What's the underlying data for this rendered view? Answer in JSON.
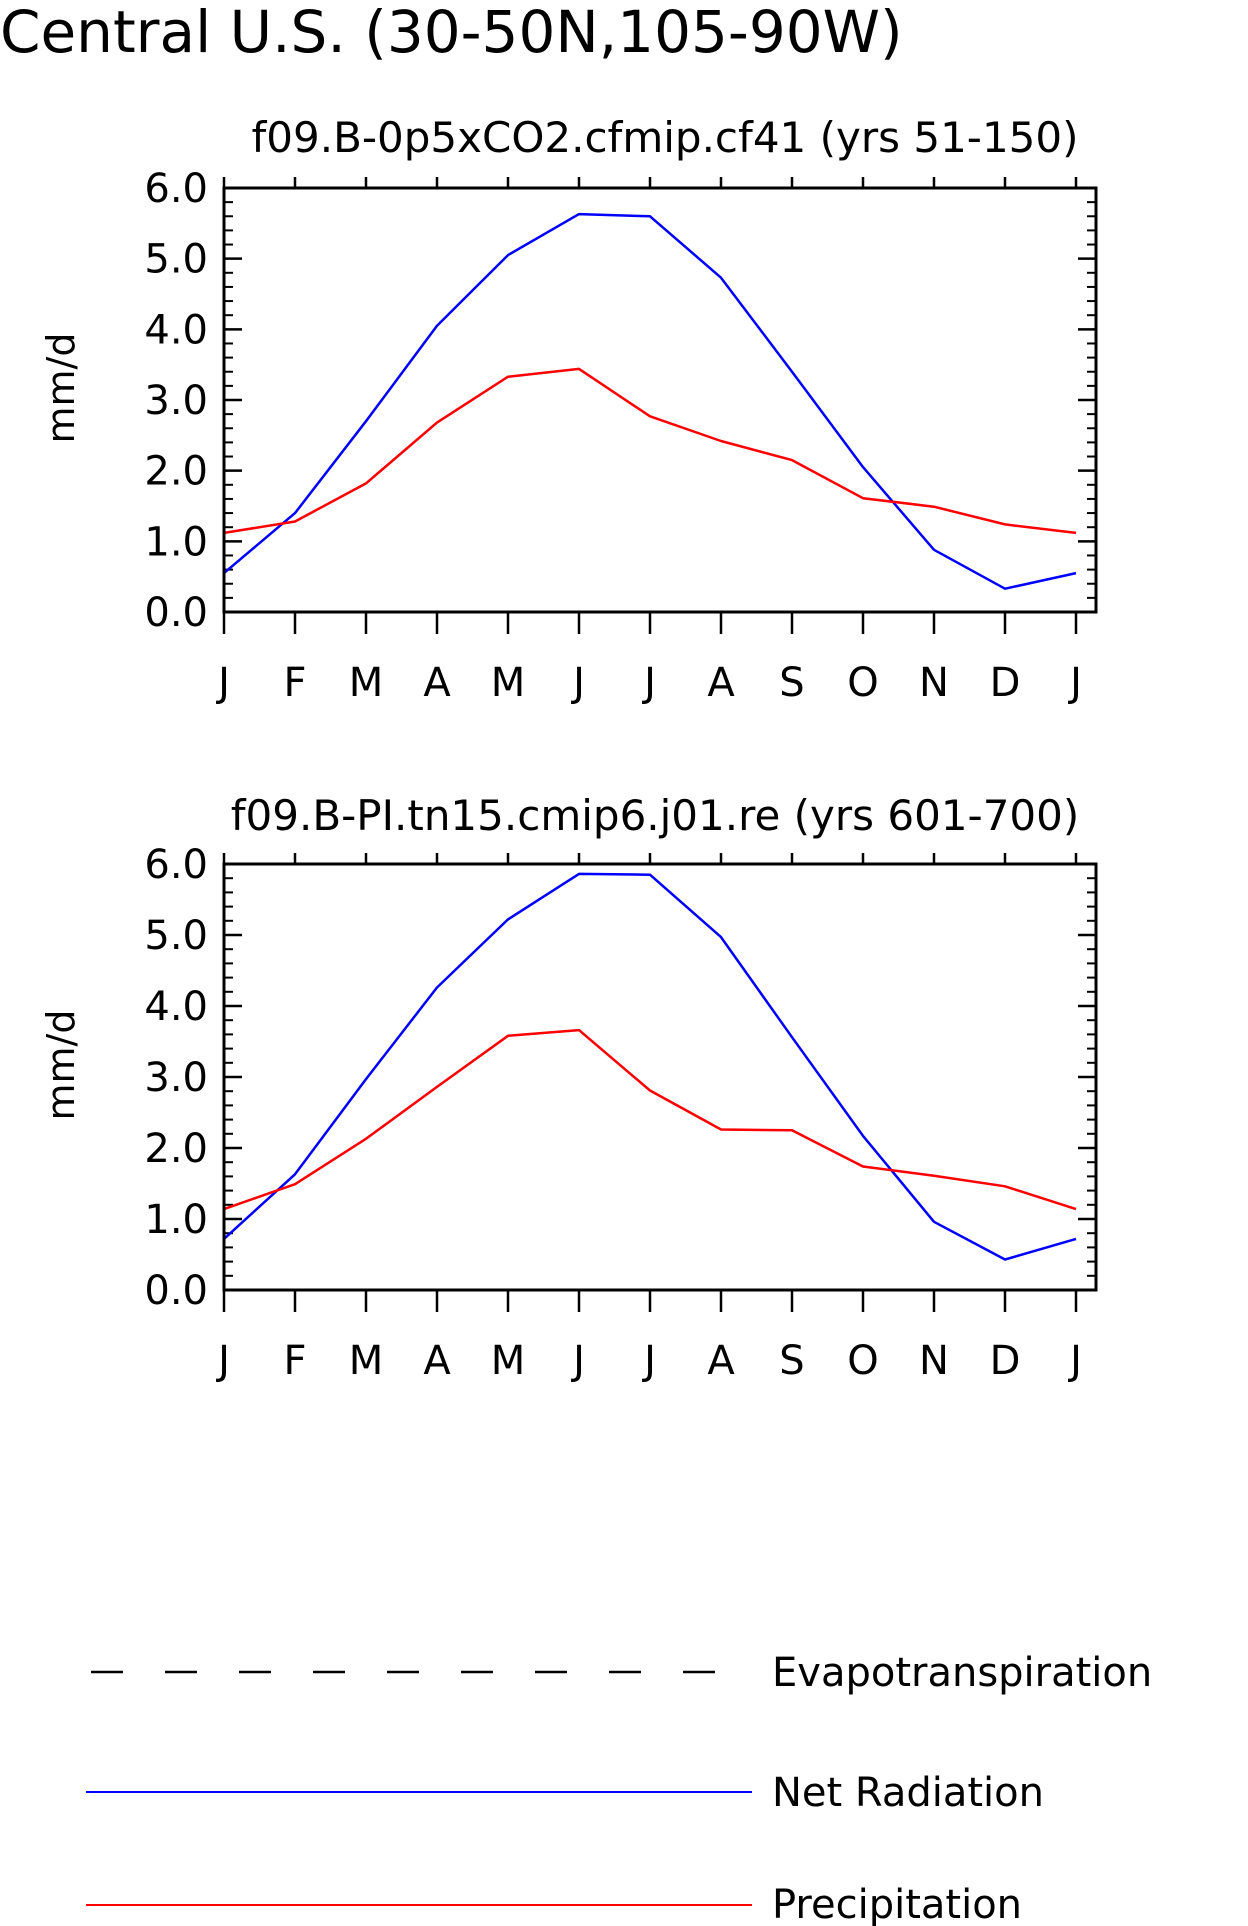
{
  "title": "Central U.S. (30-50N,105-90W)",
  "chart_data": [
    {
      "type": "line",
      "title": "f09.B-0p5xCO2.cfmip.cf41 (yrs 51-150)",
      "ylabel": "mm/d",
      "categories": [
        "J",
        "F",
        "M",
        "A",
        "M",
        "J",
        "J",
        "A",
        "S",
        "O",
        "N",
        "D",
        "J"
      ],
      "ylim": [
        0,
        6
      ],
      "yticks": [
        "0.0",
        "1.0",
        "2.0",
        "3.0",
        "4.0",
        "5.0",
        "6.0"
      ],
      "series": [
        {
          "name": "Net Radiation",
          "color": "#0000ff",
          "values": [
            0.55,
            1.4,
            2.7,
            4.05,
            5.05,
            5.63,
            5.6,
            4.73,
            3.4,
            2.05,
            0.88,
            0.33,
            0.55
          ]
        },
        {
          "name": "Precipitation",
          "color": "#ff0000",
          "values": [
            1.12,
            1.28,
            1.82,
            2.68,
            3.33,
            3.44,
            2.77,
            2.42,
            2.15,
            1.61,
            1.49,
            1.24,
            1.12
          ]
        }
      ]
    },
    {
      "type": "line",
      "title": "f09.B-PI.tn15.cmip6.j01.re (yrs 601-700)",
      "ylabel": "mm/d",
      "categories": [
        "J",
        "F",
        "M",
        "A",
        "M",
        "J",
        "J",
        "A",
        "S",
        "O",
        "N",
        "D",
        "J"
      ],
      "ylim": [
        0,
        6
      ],
      "yticks": [
        "0.0",
        "1.0",
        "2.0",
        "3.0",
        "4.0",
        "5.0",
        "6.0"
      ],
      "series": [
        {
          "name": "Net Radiation",
          "color": "#0000ff",
          "values": [
            0.72,
            1.63,
            2.97,
            4.26,
            5.22,
            5.86,
            5.85,
            4.97,
            3.56,
            2.17,
            0.96,
            0.43,
            0.72
          ]
        },
        {
          "name": "Precipitation",
          "color": "#ff0000",
          "values": [
            1.14,
            1.49,
            2.13,
            2.86,
            3.58,
            3.66,
            2.81,
            2.26,
            2.25,
            1.74,
            1.61,
            1.46,
            1.14
          ]
        }
      ]
    }
  ],
  "legend": [
    {
      "label": "Evapotranspiration",
      "color": "#000000",
      "dashed": true
    },
    {
      "label": "Net Radiation",
      "color": "#0000ff",
      "dashed": false
    },
    {
      "label": "Precipitation",
      "color": "#ff0000",
      "dashed": false
    }
  ]
}
